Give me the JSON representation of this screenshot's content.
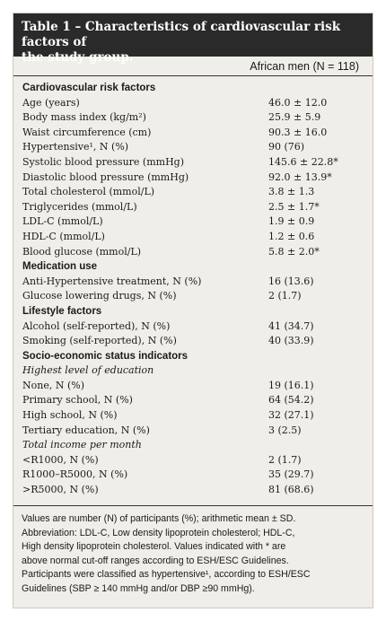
{
  "table": {
    "title_line1": "Table 1 – Characteristics of cardiovascular risk factors of",
    "title_line2": "the study group.",
    "column_header": "African men (N = 118)",
    "rows": [
      {
        "kind": "section",
        "label": "Cardiovascular risk factors",
        "value": ""
      },
      {
        "kind": "row",
        "label": "Age (years)",
        "value": "46.0 ± 12.0"
      },
      {
        "kind": "row",
        "label": "Body mass index (kg/m²)",
        "value": "25.9 ± 5.9"
      },
      {
        "kind": "row",
        "label": "Waist circumference (cm)",
        "value": "90.3 ± 16.0"
      },
      {
        "kind": "row",
        "label": "Hypertensive¹, N (%)",
        "value": "90 (76)"
      },
      {
        "kind": "row",
        "label": "Systolic blood pressure (mmHg)",
        "value": "145.6 ± 22.8*"
      },
      {
        "kind": "row",
        "label": "Diastolic blood pressure (mmHg)",
        "value": "92.0 ± 13.9*"
      },
      {
        "kind": "row",
        "label": "Total cholesterol (mmol/L)",
        "value": "3.8 ± 1.3"
      },
      {
        "kind": "row",
        "label": "Triglycerides (mmol/L)",
        "value": "2.5 ± 1.7*"
      },
      {
        "kind": "row",
        "label": "LDL-C (mmol/L)",
        "value": "1.9 ± 0.9"
      },
      {
        "kind": "row",
        "label": "HDL-C (mmol/L)",
        "value": "1.2 ± 0.6"
      },
      {
        "kind": "row",
        "label": "Blood glucose (mmol/L)",
        "value": "5.8 ± 2.0*"
      },
      {
        "kind": "section",
        "label": "Medication use",
        "value": ""
      },
      {
        "kind": "row",
        "label": "Anti-Hypertensive treatment, N (%)",
        "value": "16 (13.6)"
      },
      {
        "kind": "row",
        "label": "Glucose lowering drugs, N (%)",
        "value": "2 (1.7)"
      },
      {
        "kind": "section",
        "label": "Lifestyle factors",
        "value": ""
      },
      {
        "kind": "row",
        "label": "Alcohol (self-reported), N (%)",
        "value": "41 (34.7)"
      },
      {
        "kind": "row",
        "label": "Smoking (self-reported), N (%)",
        "value": "40 (33.9)"
      },
      {
        "kind": "section",
        "label": "Socio-economic status indicators",
        "value": ""
      },
      {
        "kind": "sub",
        "label": "Highest level of education",
        "value": ""
      },
      {
        "kind": "row",
        "label": "None, N (%)",
        "value": "19 (16.1)"
      },
      {
        "kind": "row",
        "label": "Primary school, N (%)",
        "value": "64 (54.2)"
      },
      {
        "kind": "row",
        "label": "High school, N (%)",
        "value": "32 (27.1)"
      },
      {
        "kind": "row",
        "label": "Tertiary education, N (%)",
        "value": "3 (2.5)"
      },
      {
        "kind": "sub",
        "label": "Total income per month",
        "value": ""
      },
      {
        "kind": "row",
        "label": "<R1000, N (%)",
        "value": "2 (1.7)"
      },
      {
        "kind": "row",
        "label": "R1000–R5000, N (%)",
        "value": "35 (29.7)"
      },
      {
        "kind": "row",
        "label": ">R5000, N (%)",
        "value": "81 (68.6)"
      }
    ],
    "footnote_lines": [
      "Values are number (N) of participants (%); arithmetic mean ± SD.",
      "Abbreviation: LDL-C, Low density lipoprotein cholesterol; HDL-C,",
      "High density lipoprotein cholesterol. Values indicated with * are",
      "above normal cut-off ranges according to ESH/ESC Guidelines.",
      "Participants were classified as hypertensive¹, according to ESH/ESC",
      "Guidelines (SBP ≥ 140 mmHg and/or DBP ≥90 mmHg)."
    ]
  }
}
